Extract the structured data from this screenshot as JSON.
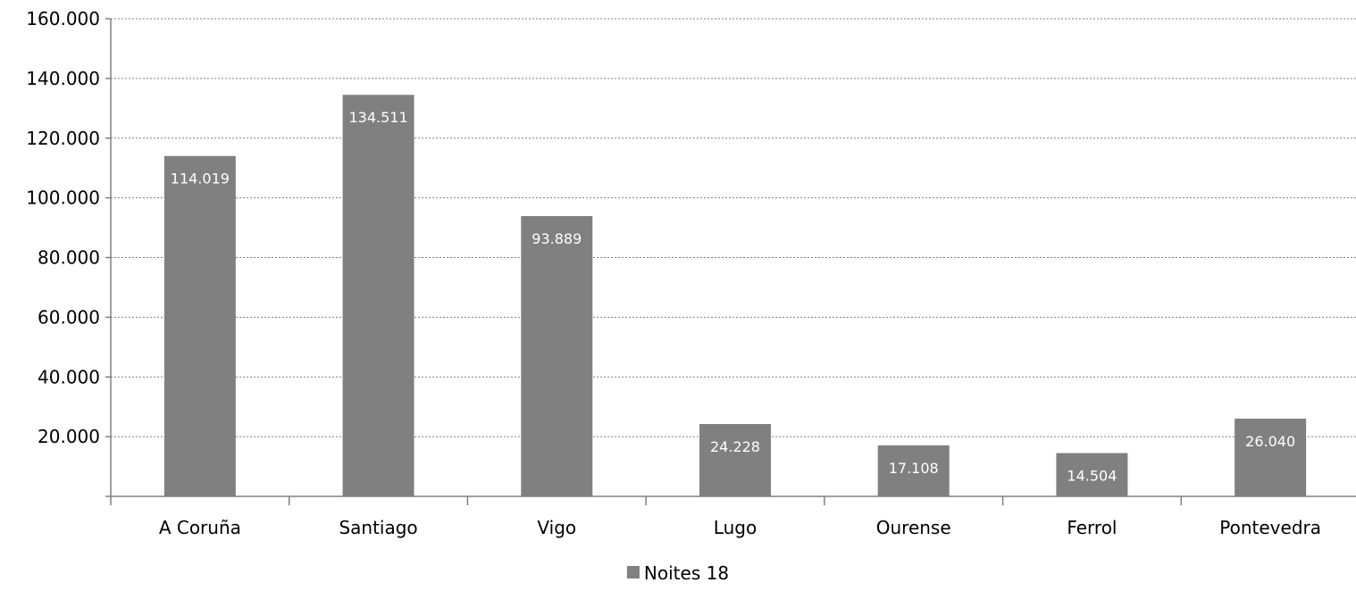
{
  "chart_data": {
    "type": "bar",
    "categories": [
      "A Coruña",
      "Santiago",
      "Vigo",
      "Lugo",
      "Ourense",
      "Ferrol",
      "Pontevedra"
    ],
    "series": [
      {
        "name": "Noites 18",
        "values": [
          114019,
          134511,
          93889,
          24228,
          17108,
          14504,
          26040
        ],
        "labels": [
          "114.019",
          "134.511",
          "93.889",
          "24.228",
          "17.108",
          "14.504",
          "26.040"
        ],
        "color": "#808080"
      }
    ],
    "ylim": [
      0,
      160000
    ],
    "yticks": [
      20000,
      40000,
      60000,
      80000,
      100000,
      120000,
      140000,
      160000
    ],
    "ytick_labels": [
      "20.000",
      "40.000",
      "60.000",
      "80.000",
      "100.000",
      "120.000",
      "140.000",
      "160.000"
    ],
    "grid": true,
    "legend_position": "bottom",
    "title": "",
    "xlabel": "",
    "ylabel": ""
  }
}
